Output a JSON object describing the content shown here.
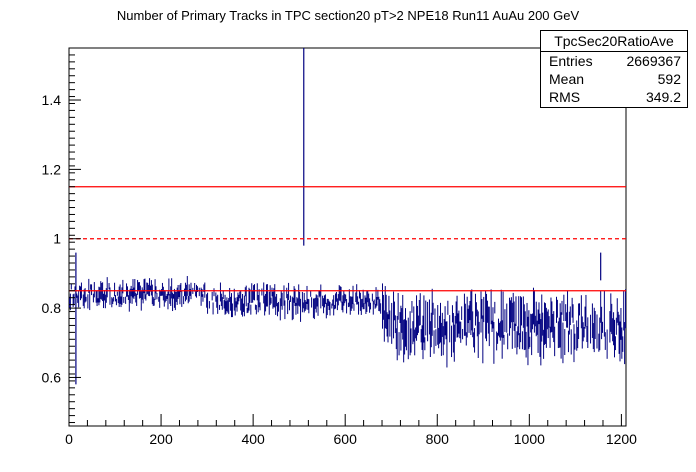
{
  "chart_data": {
    "type": "scatter",
    "title": "Number of Primary Tracks in TPC section20 pT>2 NPE18 Run11 AuAu 200 GeV",
    "xlabel": "",
    "ylabel": "",
    "xlim": [
      0,
      1210
    ],
    "ylim": [
      0.46,
      1.55
    ],
    "x_ticks": [
      0,
      200,
      400,
      600,
      800,
      1000,
      1200
    ],
    "y_ticks": [
      0.6,
      0.8,
      1,
      1.2,
      1.4
    ],
    "x_tick_labels": [
      "0",
      "200",
      "400",
      "600",
      "800",
      "1000",
      "1200"
    ],
    "y_tick_labels": [
      "0.6",
      "0.8",
      "1",
      "1.2",
      "1.4"
    ],
    "reference_lines": [
      {
        "y": 1.15,
        "style": "solid",
        "color": "#ff0000"
      },
      {
        "y": 1.0,
        "style": "dashed",
        "color": "#ff0000"
      },
      {
        "y": 0.85,
        "style": "solid",
        "color": "#ff0000"
      }
    ],
    "series_color": "#000080",
    "segments": [
      {
        "x_start": 0,
        "x_end": 300,
        "level": 0.84,
        "spread": 0.03
      },
      {
        "x_start": 300,
        "x_end": 560,
        "level": 0.82,
        "spread": 0.035
      },
      {
        "x_start": 560,
        "x_end": 680,
        "level": 0.82,
        "spread": 0.03
      },
      {
        "x_start": 680,
        "x_end": 1210,
        "level": 0.75,
        "spread": 0.07
      }
    ],
    "outliers": [
      {
        "x": 15,
        "low": 0.58,
        "high": 0.96
      },
      {
        "x": 510,
        "low": 0.98,
        "high": 1.55
      },
      {
        "x": 1155,
        "low": 0.88,
        "high": 0.96
      }
    ],
    "grid": false,
    "legend": "none"
  },
  "stats": {
    "name": "TpcSec20RatioAve",
    "rows": [
      {
        "label": "Entries",
        "value": "2669367"
      },
      {
        "label": "Mean",
        "value": "592"
      },
      {
        "label": "RMS",
        "value": "349.2"
      }
    ]
  }
}
